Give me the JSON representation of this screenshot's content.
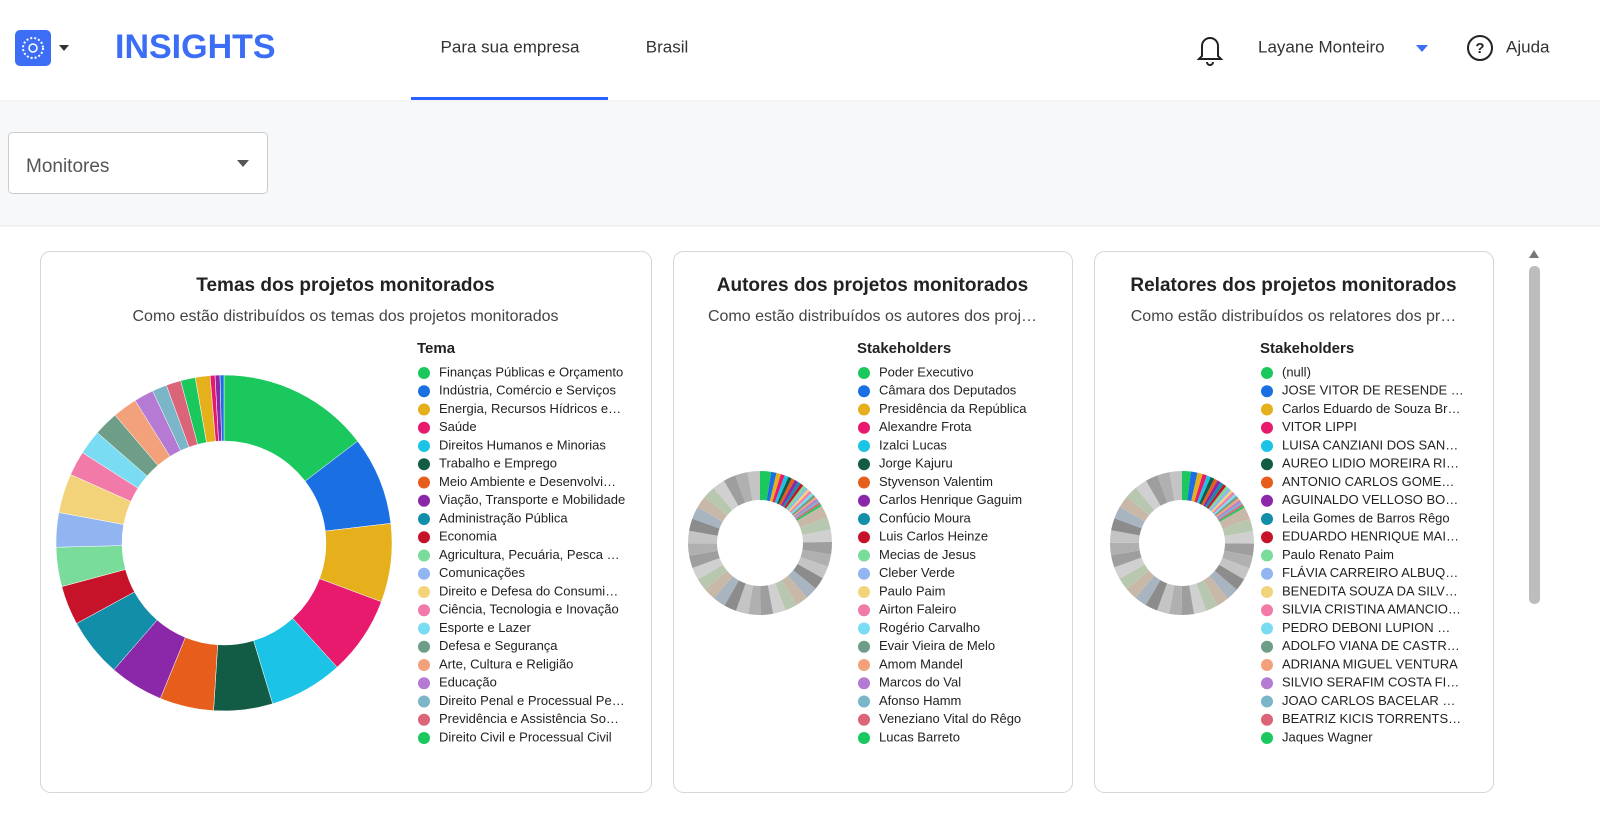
{
  "header": {
    "brand": "INSIGHTS",
    "nav": [
      "Para sua empresa",
      "Brasil"
    ],
    "user": "Layane Monteiro",
    "help": "Ajuda"
  },
  "filter": {
    "label": "Monitores"
  },
  "charts": [
    {
      "type": "donut",
      "title": "Temas dos projetos monitorados",
      "subtitle": "Como estão distribuídos os temas dos projetos monitorados",
      "legend_title": "Tema",
      "categories": [
        "Finanças Públicas e Orçamento",
        "Indústria, Comércio e Serviços",
        "Energia, Recursos Hídricos e…",
        "Saúde",
        "Direitos Humanos e Minorias",
        "Trabalho e Emprego",
        "Meio Ambiente e Desenvolvi…",
        "Viação, Transporte e Mobilidade",
        "Administração Pública",
        "Economia",
        "Agricultura, Pecuária, Pesca …",
        "Comunicações",
        "Direito e Defesa do Consumi…",
        "Ciência, Tecnologia e Inovação",
        "Esporte e Lazer",
        "Defesa e Segurança",
        "Arte, Cultura e Religião",
        "Educação",
        "Direito Penal e Processual Pe…",
        "Previdência e Assistência So…",
        "Direito Civil e Processual Civil",
        null,
        null,
        null,
        null
      ],
      "values": [
        15.5,
        9,
        8,
        8,
        7.5,
        6,
        5.5,
        5.5,
        6,
        4,
        4,
        3.5,
        4,
        2.5,
        2.5,
        2.5,
        2.5,
        2,
        1.5,
        1.5,
        1.5,
        1.5,
        0.5,
        0.5,
        0.4
      ],
      "colors": [
        "#1bc85e",
        "#1a6fe3",
        "#e5b01c",
        "#e81a6d",
        "#1bc3e6",
        "#125c45",
        "#e75e1c",
        "#8b27a9",
        "#138ea9",
        "#c6132a",
        "#79dc9b",
        "#90b5f1",
        "#f2d37a",
        "#f27aa9",
        "#7adcf2",
        "#6e9d88",
        "#f2a17a",
        "#b57ad3",
        "#7ab5c8",
        "#dc6479",
        "#1bc85e",
        "#e5b01c",
        "#e81a6d",
        "#8b27a9",
        "#1a6fe3"
      ]
    },
    {
      "type": "donut",
      "title": "Autores dos projetos monitorados",
      "subtitle": "Como estão distribuídos os autores dos proj…",
      "legend_title": "Stakeholders",
      "categories": [
        "Poder Executivo",
        "Câmara dos Deputados",
        "Presidência da República",
        "Alexandre Frota",
        "Izalci Lucas",
        "Jorge Kajuru",
        "Styvenson Valentim",
        "Carlos Henrique Gaguim",
        "Confúcio Moura",
        "Luis Carlos Heinze",
        "Mecias de Jesus",
        "Cleber Verde",
        "Paulo Paim",
        "Airton Faleiro",
        "Rogério Carvalho",
        "Evair Vieira de Melo",
        "Amom Mandel",
        "Marcos do Val",
        "Afonso Hamm",
        "Veneziano Vital do Rêgo",
        "Lucas Barreto",
        null,
        null,
        null,
        null,
        null,
        null,
        null,
        null,
        null,
        null,
        null,
        null,
        null,
        null,
        null,
        null,
        null,
        null,
        null,
        null,
        null,
        null,
        null,
        null,
        null,
        null,
        null,
        null,
        null,
        null
      ],
      "values": [
        2.5,
        1.2,
        1,
        0.9,
        0.9,
        0.8,
        0.8,
        0.8,
        0.7,
        0.7,
        0.7,
        0.6,
        0.6,
        0.6,
        0.6,
        0.6,
        0.5,
        0.5,
        0.5,
        0.5,
        0.5,
        2.8,
        2.8,
        2.8,
        2.8,
        2.8,
        2.8,
        2.8,
        2.8,
        2.8,
        2.8,
        2.8,
        2.8,
        2.8,
        2.8,
        2.8,
        2.8,
        2.8,
        2.8,
        2.8,
        2.8,
        2.8,
        2.8,
        2.8,
        2.8,
        2.8,
        2.8,
        2.8,
        2.8,
        2.8,
        2.8
      ],
      "colors": [
        "#1bc85e",
        "#1a6fe3",
        "#e5b01c",
        "#e81a6d",
        "#1bc3e6",
        "#125c45",
        "#e75e1c",
        "#8b27a9",
        "#138ea9",
        "#c6132a",
        "#79dc9b",
        "#90b5f1",
        "#f2d37a",
        "#f27aa9",
        "#7adcf2",
        "#6e9d88",
        "#f2a17a",
        "#b57ad3",
        "#7ab5c8",
        "#dc6479",
        "#1bc85e"
      ]
    },
    {
      "type": "donut",
      "title": "Relatores dos projetos monitorados",
      "subtitle": "Como estão distribuídos os relatores dos pr…",
      "legend_title": "Stakeholders",
      "categories": [
        "(null)",
        "JOSE VITOR DE RESENDE …",
        "Carlos Eduardo de Souza Br…",
        "VITOR LIPPI",
        "LUISA CANZIANI DOS SAN…",
        "AUREO LIDIO MOREIRA RI…",
        "ANTONIO CARLOS GOME…",
        "AGUINALDO VELLOSO BO…",
        "Leila Gomes de Barros Rêgo",
        "EDUARDO HENRIQUE MAI…",
        "Paulo Renato Paim",
        "FLÁVIA CARREIRO ALBUQ…",
        "BENEDITA SOUZA DA SILV…",
        "SILVIA CRISTINA AMANCIO…",
        "PEDRO DEBONI LUPION …",
        "ADOLFO VIANA DE CASTR…",
        "ADRIANA MIGUEL VENTURA",
        "SILVIO SERAFIM COSTA FI…",
        "JOAO CARLOS BACELAR …",
        "BEATRIZ KICIS TORRENTS…",
        "Jaques Wagner",
        null,
        null,
        null,
        null,
        null,
        null,
        null,
        null,
        null,
        null,
        null,
        null,
        null,
        null,
        null,
        null,
        null,
        null,
        null,
        null,
        null,
        null,
        null,
        null,
        null,
        null,
        null,
        null,
        null,
        null
      ],
      "values": [
        2,
        1.5,
        1.2,
        1,
        0.9,
        0.9,
        0.8,
        0.8,
        0.8,
        0.7,
        0.7,
        0.7,
        0.6,
        0.6,
        0.6,
        0.6,
        0.6,
        0.5,
        0.5,
        0.5,
        0.5,
        2.8,
        2.8,
        2.8,
        2.8,
        2.8,
        2.8,
        2.8,
        2.8,
        2.8,
        2.8,
        2.8,
        2.8,
        2.8,
        2.8,
        2.8,
        2.8,
        2.8,
        2.8,
        2.8,
        2.8,
        2.8,
        2.8,
        2.8,
        2.8,
        2.8,
        2.8,
        2.8,
        2.8,
        2.8,
        2.8
      ],
      "colors": [
        "#1bc85e",
        "#1a6fe3",
        "#e5b01c",
        "#e81a6d",
        "#1bc3e6",
        "#125c45",
        "#e75e1c",
        "#8b27a9",
        "#138ea9",
        "#c6132a",
        "#79dc9b",
        "#90b5f1",
        "#f2d37a",
        "#f27aa9",
        "#7adcf2",
        "#6e9d88",
        "#f2a17a",
        "#b57ad3",
        "#7ab5c8",
        "#dc6479",
        "#1bc85e"
      ]
    }
  ]
}
